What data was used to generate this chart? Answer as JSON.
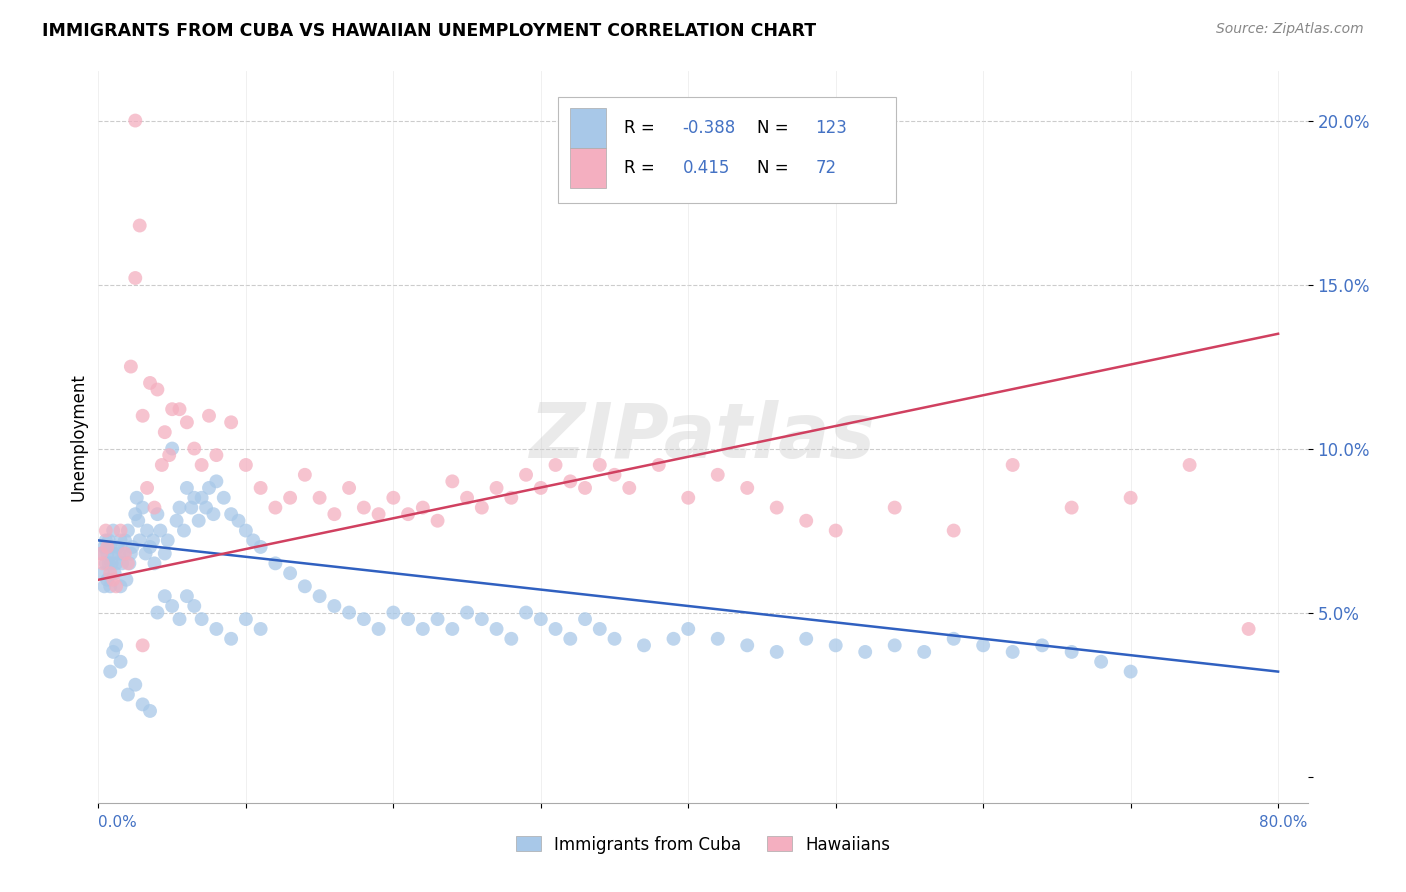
{
  "title": "IMMIGRANTS FROM CUBA VS HAWAIIAN UNEMPLOYMENT CORRELATION CHART",
  "source": "Source: ZipAtlas.com",
  "ylabel": "Unemployment",
  "yticks": [
    0.0,
    0.05,
    0.1,
    0.15,
    0.2
  ],
  "ytick_labels": [
    "",
    "5.0%",
    "10.0%",
    "15.0%",
    "20.0%"
  ],
  "xticks": [
    0.0,
    0.1,
    0.2,
    0.3,
    0.4,
    0.5,
    0.6,
    0.7,
    0.8
  ],
  "blue_scatter_x": [
    0.002,
    0.003,
    0.004,
    0.004,
    0.005,
    0.005,
    0.006,
    0.006,
    0.007,
    0.007,
    0.008,
    0.008,
    0.009,
    0.01,
    0.01,
    0.011,
    0.012,
    0.013,
    0.014,
    0.015,
    0.015,
    0.016,
    0.017,
    0.018,
    0.019,
    0.02,
    0.021,
    0.022,
    0.023,
    0.025,
    0.026,
    0.027,
    0.028,
    0.03,
    0.032,
    0.033,
    0.035,
    0.037,
    0.038,
    0.04,
    0.042,
    0.045,
    0.047,
    0.05,
    0.053,
    0.055,
    0.058,
    0.06,
    0.063,
    0.065,
    0.068,
    0.07,
    0.073,
    0.075,
    0.078,
    0.08,
    0.085,
    0.09,
    0.095,
    0.1,
    0.105,
    0.11,
    0.12,
    0.13,
    0.14,
    0.15,
    0.16,
    0.17,
    0.18,
    0.19,
    0.2,
    0.21,
    0.22,
    0.23,
    0.24,
    0.25,
    0.26,
    0.27,
    0.28,
    0.29,
    0.3,
    0.31,
    0.32,
    0.33,
    0.34,
    0.35,
    0.37,
    0.39,
    0.4,
    0.42,
    0.44,
    0.46,
    0.48,
    0.5,
    0.52,
    0.54,
    0.56,
    0.58,
    0.6,
    0.62,
    0.64,
    0.66,
    0.68,
    0.7,
    0.02,
    0.025,
    0.03,
    0.035,
    0.015,
    0.012,
    0.01,
    0.008,
    0.04,
    0.045,
    0.05,
    0.055,
    0.06,
    0.065,
    0.07,
    0.08,
    0.09,
    0.1,
    0.11
  ],
  "blue_scatter_y": [
    0.068,
    0.062,
    0.07,
    0.058,
    0.072,
    0.065,
    0.068,
    0.06,
    0.065,
    0.072,
    0.058,
    0.07,
    0.065,
    0.068,
    0.075,
    0.062,
    0.065,
    0.07,
    0.068,
    0.072,
    0.058,
    0.065,
    0.068,
    0.072,
    0.06,
    0.075,
    0.065,
    0.068,
    0.07,
    0.08,
    0.085,
    0.078,
    0.072,
    0.082,
    0.068,
    0.075,
    0.07,
    0.072,
    0.065,
    0.08,
    0.075,
    0.068,
    0.072,
    0.1,
    0.078,
    0.082,
    0.075,
    0.088,
    0.082,
    0.085,
    0.078,
    0.085,
    0.082,
    0.088,
    0.08,
    0.09,
    0.085,
    0.08,
    0.078,
    0.075,
    0.072,
    0.07,
    0.065,
    0.062,
    0.058,
    0.055,
    0.052,
    0.05,
    0.048,
    0.045,
    0.05,
    0.048,
    0.045,
    0.048,
    0.045,
    0.05,
    0.048,
    0.045,
    0.042,
    0.05,
    0.048,
    0.045,
    0.042,
    0.048,
    0.045,
    0.042,
    0.04,
    0.042,
    0.045,
    0.042,
    0.04,
    0.038,
    0.042,
    0.04,
    0.038,
    0.04,
    0.038,
    0.042,
    0.04,
    0.038,
    0.04,
    0.038,
    0.035,
    0.032,
    0.025,
    0.028,
    0.022,
    0.02,
    0.035,
    0.04,
    0.038,
    0.032,
    0.05,
    0.055,
    0.052,
    0.048,
    0.055,
    0.052,
    0.048,
    0.045,
    0.042,
    0.048,
    0.045
  ],
  "pink_scatter_x": [
    0.002,
    0.003,
    0.005,
    0.006,
    0.008,
    0.01,
    0.012,
    0.015,
    0.018,
    0.02,
    0.022,
    0.025,
    0.028,
    0.03,
    0.033,
    0.035,
    0.038,
    0.04,
    0.043,
    0.045,
    0.048,
    0.05,
    0.055,
    0.06,
    0.065,
    0.07,
    0.075,
    0.08,
    0.09,
    0.1,
    0.11,
    0.12,
    0.13,
    0.14,
    0.15,
    0.16,
    0.17,
    0.18,
    0.19,
    0.2,
    0.21,
    0.22,
    0.23,
    0.24,
    0.25,
    0.26,
    0.27,
    0.28,
    0.29,
    0.3,
    0.31,
    0.32,
    0.33,
    0.34,
    0.35,
    0.36,
    0.38,
    0.4,
    0.42,
    0.44,
    0.46,
    0.48,
    0.5,
    0.54,
    0.58,
    0.62,
    0.66,
    0.7,
    0.74,
    0.78,
    0.025,
    0.03
  ],
  "pink_scatter_y": [
    0.068,
    0.065,
    0.075,
    0.07,
    0.062,
    0.06,
    0.058,
    0.075,
    0.068,
    0.065,
    0.125,
    0.2,
    0.168,
    0.11,
    0.088,
    0.12,
    0.082,
    0.118,
    0.095,
    0.105,
    0.098,
    0.112,
    0.112,
    0.108,
    0.1,
    0.095,
    0.11,
    0.098,
    0.108,
    0.095,
    0.088,
    0.082,
    0.085,
    0.092,
    0.085,
    0.08,
    0.088,
    0.082,
    0.08,
    0.085,
    0.08,
    0.082,
    0.078,
    0.09,
    0.085,
    0.082,
    0.088,
    0.085,
    0.092,
    0.088,
    0.095,
    0.09,
    0.088,
    0.095,
    0.092,
    0.088,
    0.095,
    0.085,
    0.092,
    0.088,
    0.082,
    0.078,
    0.075,
    0.082,
    0.075,
    0.095,
    0.082,
    0.085,
    0.095,
    0.045,
    0.152,
    0.04
  ],
  "blue_line_x": [
    0.0,
    0.8
  ],
  "blue_line_y": [
    0.072,
    0.032
  ],
  "pink_line_x": [
    0.0,
    0.8
  ],
  "pink_line_y": [
    0.06,
    0.135
  ],
  "watermark": "ZIPatlas",
  "blue_color": "#a8c8e8",
  "pink_color": "#f4afc0",
  "blue_line_color": "#3060c0",
  "pink_line_color": "#d04060",
  "xlim": [
    0.0,
    0.82
  ],
  "ylim": [
    -0.008,
    0.215
  ],
  "legend_blue_R": "-0.388",
  "legend_blue_N": "123",
  "legend_pink_R": "0.415",
  "legend_pink_N": "72",
  "legend_R_color": "#000000",
  "legend_val_color": "#4472c4",
  "legend_N_color": "#000000"
}
